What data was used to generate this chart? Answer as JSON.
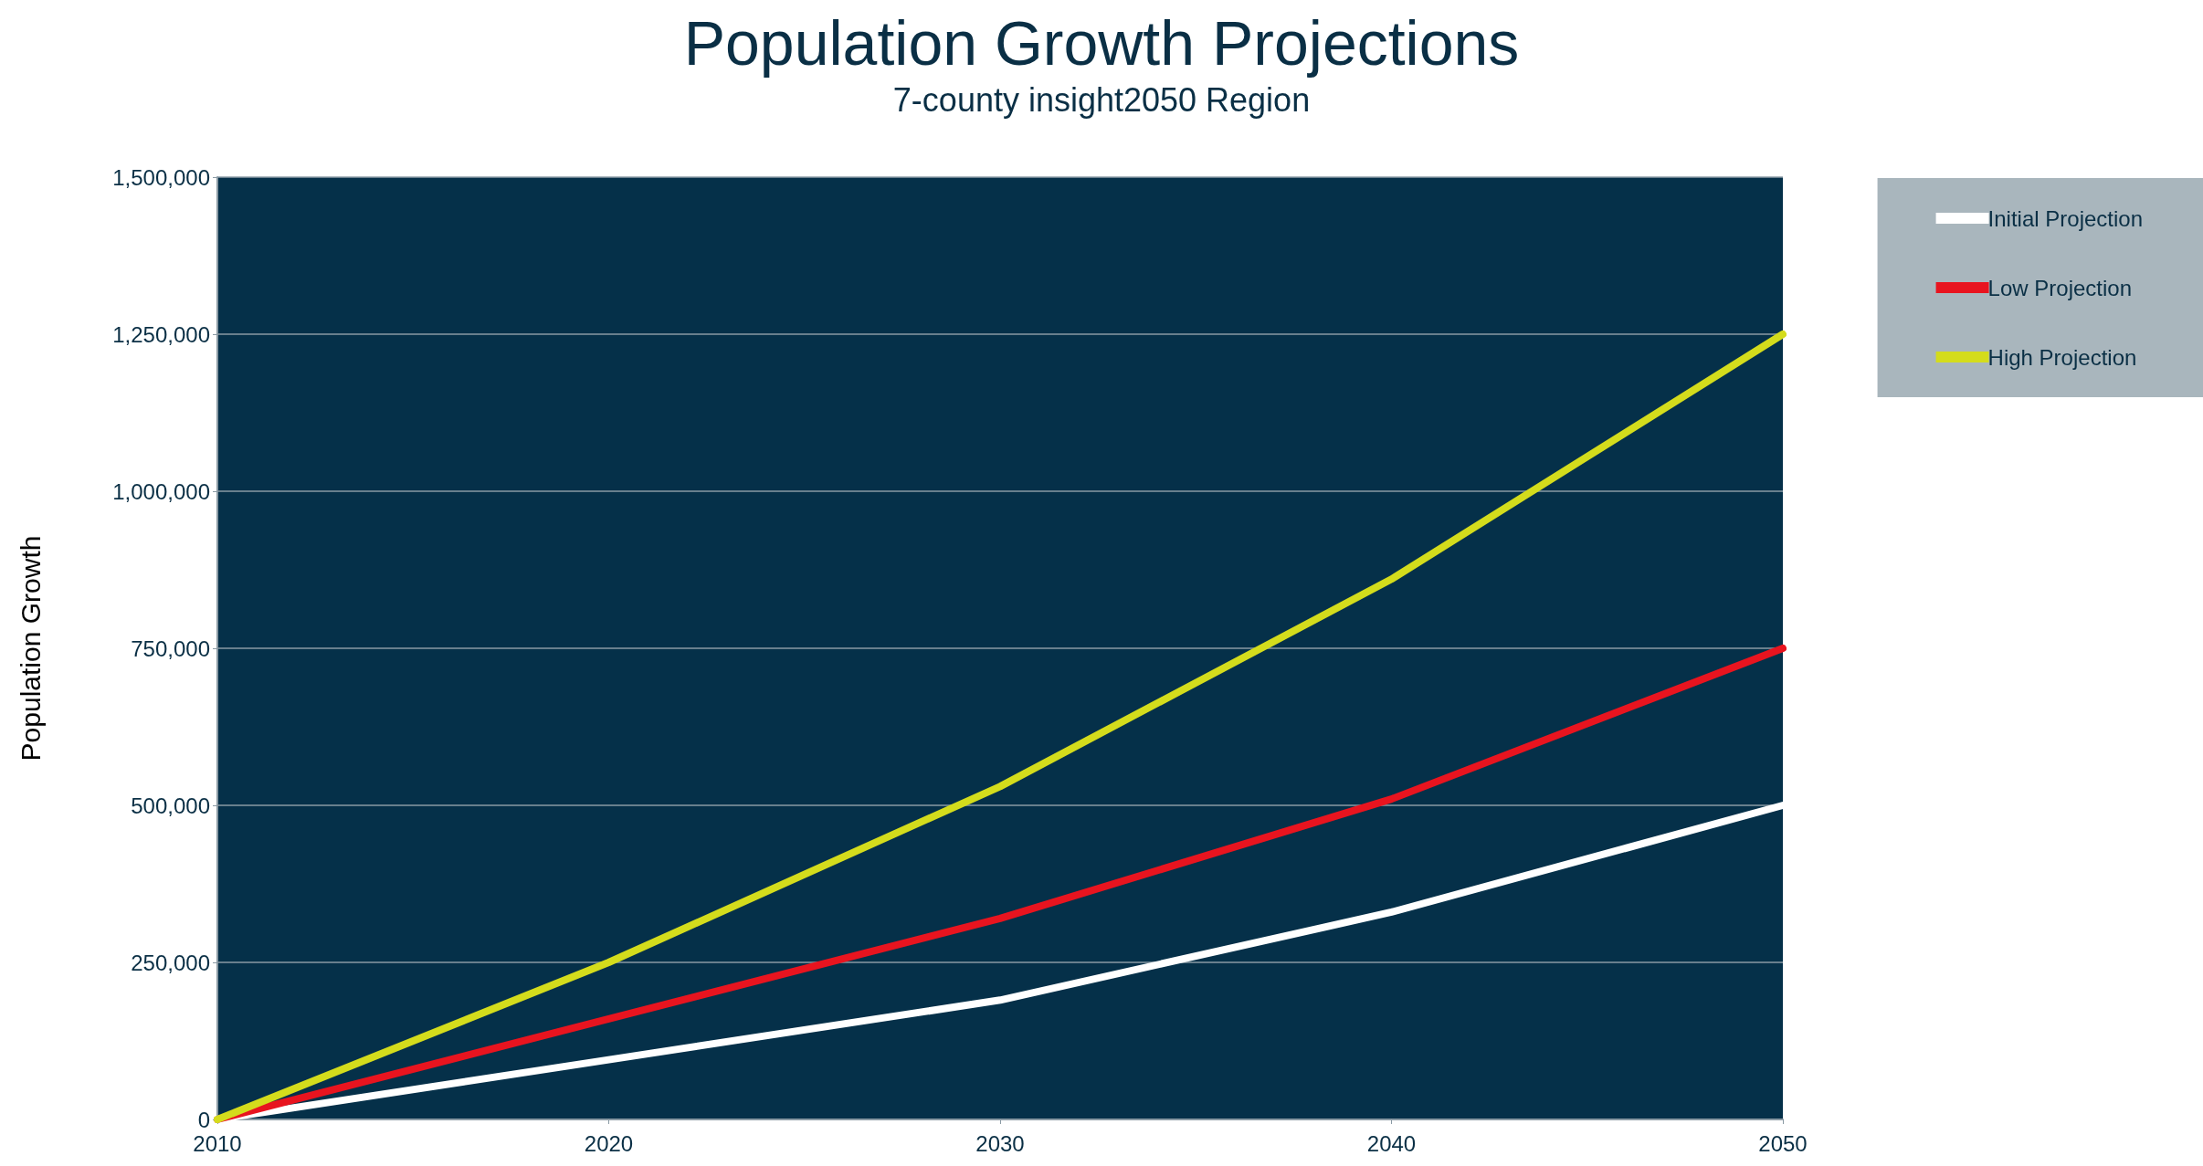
{
  "chart_data": {
    "type": "line",
    "title": "Population Growth Projections",
    "subtitle": "7-county insight2050 Region",
    "ylabel": "Population Growth",
    "x": [
      2010,
      2020,
      2030,
      2040,
      2050
    ],
    "series": [
      {
        "name": "Initial Projection",
        "color": "#ffffff",
        "values": [
          0,
          95000,
          190000,
          330000,
          500000
        ]
      },
      {
        "name": "Low Projection",
        "color": "#e8141f",
        "values": [
          0,
          160000,
          320000,
          510000,
          750000
        ]
      },
      {
        "name": "High Projection",
        "color": "#d4dc1c",
        "values": [
          0,
          250000,
          530000,
          860000,
          1250000
        ]
      }
    ],
    "xlim": [
      2010,
      2050
    ],
    "xticks": [
      2010,
      2020,
      2030,
      2040,
      2050
    ],
    "ylim": [
      0,
      1500000
    ],
    "yticks": [
      0,
      {
        "value": 250000,
        "label": "250,000"
      },
      {
        "value": 500000,
        "label": "500,000"
      },
      {
        "value": 750000,
        "label": "750,000"
      },
      {
        "value": 1000000,
        "label": "1,000,000"
      },
      {
        "value": 1250000,
        "label": "1,250,000"
      },
      {
        "value": 1500000,
        "label": "1,500,000"
      }
    ],
    "grid": "y",
    "legend": "top right",
    "marker": "none",
    "line_style": "solid"
  }
}
